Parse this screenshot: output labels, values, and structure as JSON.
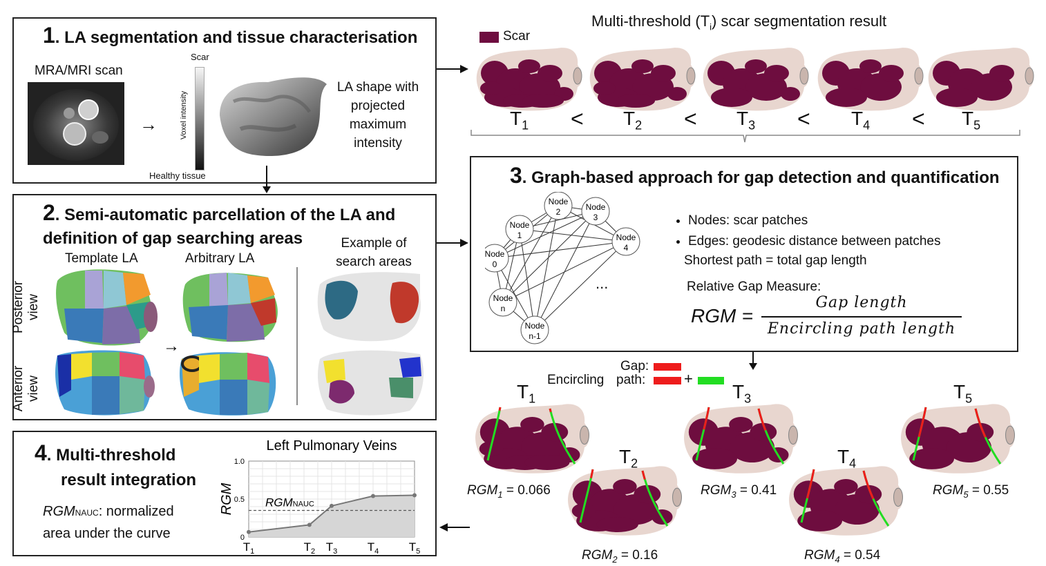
{
  "panel1": {
    "num": "1",
    "title": ". LA segmentation and tissue characterisation",
    "mri_label": "MRA/MRI scan",
    "bar_top": "Scar",
    "bar_axis": "Voxel intensity",
    "bar_bottom": "Healthy tissue",
    "shape_label": "LA shape with projected maximum intensity"
  },
  "result": {
    "title": "Multi-threshold (T",
    "title_sub": "i",
    "title_end": ") scar segmentation result",
    "legend": "Scar",
    "lt": "<",
    "thresholds": [
      {
        "T": "T",
        "sub": "1"
      },
      {
        "T": "T",
        "sub": "2"
      },
      {
        "T": "T",
        "sub": "3"
      },
      {
        "T": "T",
        "sub": "4"
      },
      {
        "T": "T",
        "sub": "5"
      }
    ]
  },
  "panel2": {
    "num": "2",
    "title_l1": ". Semi-automatic parcellation of the LA and",
    "title_l2": "definition of gap searching areas",
    "template": "Template LA",
    "arbitrary": "Arbitrary LA",
    "example": "Example of search areas",
    "posterior": "Posterior view",
    "anterior": "Anterior view"
  },
  "panel3": {
    "num": "3",
    "title": ". Graph-based approach for gap detection and quantification",
    "nodes": [
      {
        "l1": "Node",
        "l2": "0"
      },
      {
        "l1": "Node",
        "l2": "1"
      },
      {
        "l1": "Node",
        "l2": "2"
      },
      {
        "l1": "Node",
        "l2": "3"
      },
      {
        "l1": "Node",
        "l2": "4"
      },
      {
        "l1": "Node",
        "l2": "n"
      },
      {
        "l1": "Node",
        "l2": "n-1"
      }
    ],
    "ellipsis": "...",
    "bullet1": "Nodes: scar patches",
    "bullet2": "Edges: geodesic distance between patches",
    "shortest": "Shortest path = total gap length",
    "rgm_label": "Relative Gap Measure:",
    "rgm": "RGM",
    "eq": "=",
    "numerator": "Gap length",
    "denominator": "Encircling path length"
  },
  "legend_gap": {
    "gap": "Gap:",
    "encircling": "Encircling",
    "path": "path:",
    "plus": "+",
    "gap_color": "#ee1c1c",
    "path_color": "#22dd22"
  },
  "results": [
    {
      "T": "T",
      "sub": "1",
      "rgm": "RGM",
      "rgm_sub": "1",
      "value": " = 0.066"
    },
    {
      "T": "T",
      "sub": "2",
      "rgm": "RGM",
      "rgm_sub": "2",
      "value": " = 0.16"
    },
    {
      "T": "T",
      "sub": "3",
      "rgm": "RGM",
      "rgm_sub": "3",
      "value": " = 0.41"
    },
    {
      "T": "T",
      "sub": "4",
      "rgm": "RGM",
      "rgm_sub": "4",
      "value": " = 0.54"
    },
    {
      "T": "T",
      "sub": "5",
      "rgm": "RGM",
      "rgm_sub": "5",
      "value": " = 0.55"
    }
  ],
  "panel4": {
    "num": "4",
    "title_l1": ". Multi-threshold",
    "title_l2": "result integration",
    "rgm": "RGM",
    "nauc": "NAUC",
    "desc1": ": normalized",
    "desc2": "area under the curve"
  },
  "chart_data": {
    "type": "area",
    "title": "Left Pulmonary Veins",
    "ylabel": "RGM",
    "x": [
      1,
      2,
      3,
      4,
      5
    ],
    "xticklabels": [
      "T1",
      "T2",
      "T3",
      "T4",
      "T5"
    ],
    "xpos": [
      0.0,
      0.366,
      0.5,
      0.75,
      1.0
    ],
    "values": [
      0.066,
      0.16,
      0.41,
      0.54,
      0.55
    ],
    "ylim": [
      0,
      1.0
    ],
    "yticks": [
      "0",
      "0.5",
      "1.0"
    ],
    "reference_line": {
      "label": "RGMNAUC",
      "value": 0.35
    },
    "grid": true
  },
  "colors": {
    "scar": "#6e0d3f",
    "tissue": "#e8d6cf",
    "border": "#222222"
  }
}
